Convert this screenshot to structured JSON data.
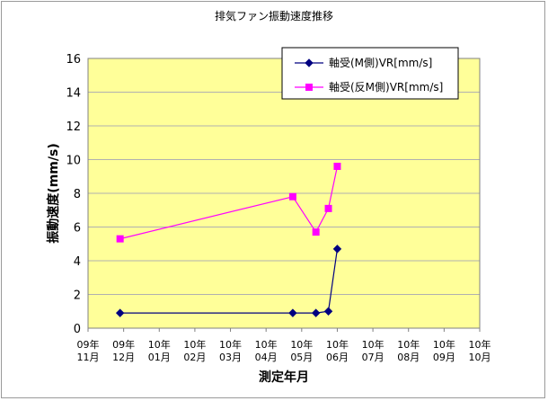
{
  "chart_data": {
    "type": "line",
    "title": "排気ファン振動速度推移",
    "xlabel": "測定年月",
    "ylabel": "振動速度(mm/s)",
    "ylim": [
      0,
      16
    ],
    "yticks": [
      0,
      2,
      4,
      6,
      8,
      10,
      12,
      14,
      16
    ],
    "x_tick_labels": [
      [
        "09年",
        "11月"
      ],
      [
        "09年",
        "12月"
      ],
      [
        "10年",
        "01月"
      ],
      [
        "10年",
        "02月"
      ],
      [
        "10年",
        "03月"
      ],
      [
        "10年",
        "04月"
      ],
      [
        "10年",
        "05月"
      ],
      [
        "10年",
        "06月"
      ],
      [
        "10年",
        "07月"
      ],
      [
        "10年",
        "08月"
      ],
      [
        "10年",
        "09月"
      ],
      [
        "10年",
        "10月"
      ]
    ],
    "x_range": [
      0,
      11
    ],
    "plot_background": "#ffff99",
    "grid": true,
    "legend_position": "top-right",
    "series": [
      {
        "name": "軸受(M側)VR[mm/s]",
        "color": "#000080",
        "marker": "diamond",
        "x": [
          0.9,
          5.75,
          6.4,
          6.75,
          7.0
        ],
        "y": [
          0.9,
          0.9,
          0.9,
          1.0,
          4.7
        ]
      },
      {
        "name": "軸受(反M側)VR[mm/s]",
        "color": "#ff00ff",
        "marker": "square",
        "x": [
          0.9,
          5.75,
          6.4,
          6.75,
          7.0
        ],
        "y": [
          5.3,
          7.8,
          5.7,
          7.1,
          9.6
        ]
      }
    ]
  }
}
